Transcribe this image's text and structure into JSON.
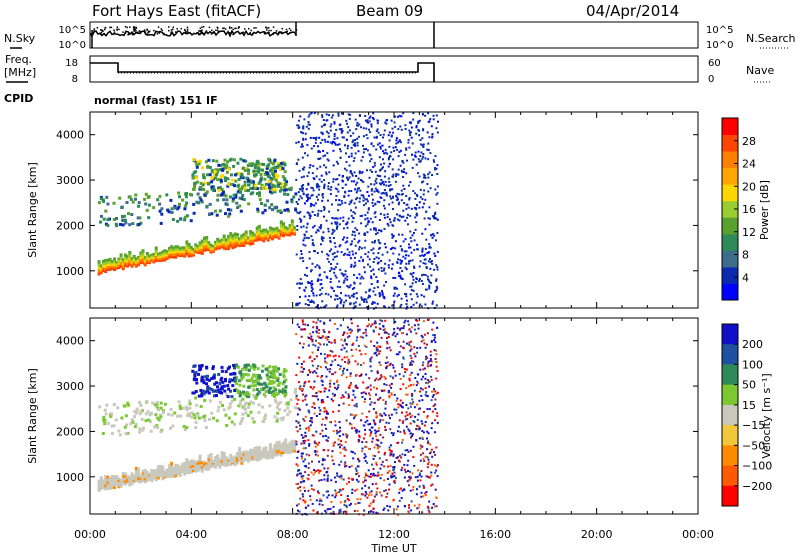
{
  "header": {
    "station": "Fort Hays East (fitACF)",
    "beam": "Beam 09",
    "date": "04/Apr/2014"
  },
  "status_panels": {
    "nsky_label": "N.Sky",
    "nsearch_label": "N.Search",
    "freq_label": "Freq.",
    "freq_unit": "[MHz]",
    "nave_label": "Nave",
    "cpid_label": "CPID",
    "cpid_value": "normal (fast) 151 IF",
    "noise_ticks_left": [
      "10^5",
      "10^0"
    ],
    "noise_ticks_right": [
      "10^5",
      "10^0"
    ],
    "freq_ticks": [
      "18",
      "8"
    ],
    "nave_ticks": [
      "60",
      "0"
    ]
  },
  "colors": {
    "power_scale": [
      "#0000ff",
      "#0a2ab0",
      "#3c6e8c",
      "#2e8b57",
      "#5aa02c",
      "#9acd32",
      "#ffd700",
      "#ffa500",
      "#ff7f00",
      "#ff4500",
      "#ff0000"
    ],
    "velocity_scale": [
      "#1010c8",
      "#2050a0",
      "#2e8b57",
      "#7cc832",
      "#c8c8bc",
      "#f0c83c",
      "#ff8c00",
      "#ff5a00",
      "#ff0000"
    ]
  },
  "chart_data": [
    {
      "type": "heatmap",
      "panel": "power",
      "ylabel": "Slant Range [km]",
      "xlabel": "Time UT",
      "x_ticks": [
        "00:00",
        "04:00",
        "08:00",
        "12:00",
        "16:00",
        "20:00",
        "00:00"
      ],
      "y_ticks": [
        "1000",
        "2000",
        "3000",
        "4000"
      ],
      "ylim": [
        180,
        4500
      ],
      "xlim_hours": [
        0,
        24
      ],
      "colorbar": {
        "label": "Power [dB]",
        "ticks": [
          "4",
          "8",
          "12",
          "16",
          "20",
          "24",
          "28"
        ],
        "range": [
          0,
          30
        ]
      },
      "features": [
        {
          "name": "ground scatter band",
          "t_start": 0.3,
          "t_end": 8.1,
          "range_start": 1050,
          "range_end": 2050,
          "power_db": 24
        },
        {
          "name": "upper scatter patch",
          "t_start": 4.0,
          "t_end": 7.7,
          "range_start": 2800,
          "range_end": 3500,
          "power_db": 12
        },
        {
          "name": "noisy scatter",
          "t_start": 8.1,
          "t_end": 13.7,
          "range_start": 180,
          "range_end": 4500,
          "power_db": 4
        }
      ]
    },
    {
      "type": "heatmap",
      "panel": "velocity",
      "ylabel": "Slant Range [km]",
      "xlabel": "Time UT",
      "x_ticks": [
        "00:00",
        "04:00",
        "08:00",
        "12:00",
        "16:00",
        "20:00",
        "00:00"
      ],
      "y_ticks": [
        "1000",
        "2000",
        "3000",
        "4000"
      ],
      "ylim": [
        180,
        4500
      ],
      "xlim_hours": [
        0,
        24
      ],
      "colorbar": {
        "label": "Velocity [m s⁻¹]",
        "ticks": [
          "200",
          "100",
          "50",
          "15",
          "−15",
          "−50",
          "−100",
          "−200"
        ],
        "range": [
          -250,
          250
        ]
      },
      "features": [
        {
          "name": "ground scatter band",
          "t_start": 0.3,
          "t_end": 8.1,
          "range_start": 800,
          "range_end": 2000,
          "velocity": 0
        },
        {
          "name": "upper scatter patch",
          "t_start": 4.0,
          "t_end": 7.7,
          "range_start": 2800,
          "range_end": 3500,
          "velocity": 150
        },
        {
          "name": "noisy scatter",
          "t_start": 8.1,
          "t_end": 13.7,
          "range_start": 180,
          "range_end": 4500,
          "velocity": 0
        }
      ]
    }
  ]
}
